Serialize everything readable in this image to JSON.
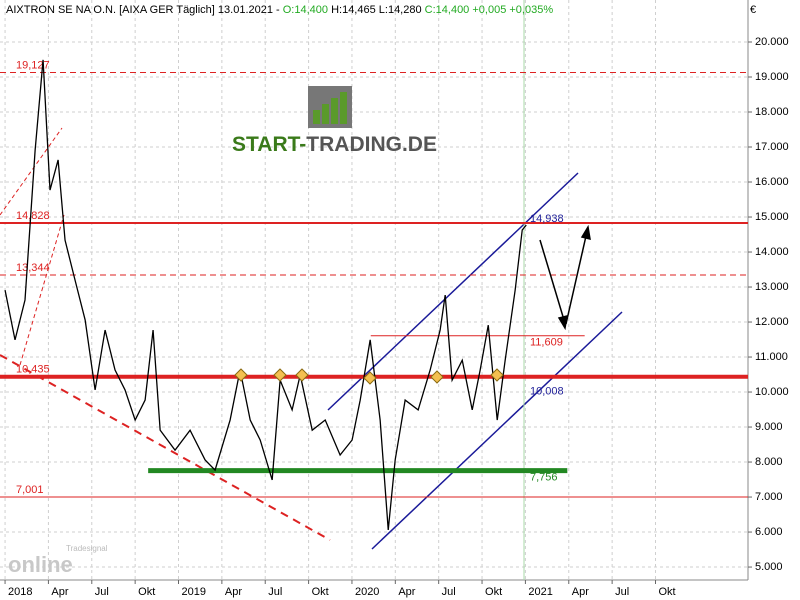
{
  "chart_data": {
    "type": "line",
    "title_parts": [
      {
        "text": "AIXTRON SE NA O.N. [AIXA GER  Täglich] 13.01.2021 - ",
        "color": "#000000"
      },
      {
        "text": "O:14,400",
        "color": "#22aa22"
      },
      {
        "text": " H:14,465 L:14,280 ",
        "color": "#000000"
      },
      {
        "text": "C:14,400 +0,005 +0,035%",
        "color": "#22aa22"
      }
    ],
    "currency": "€",
    "logo": [
      "START-",
      "TRADING.DE"
    ],
    "watermark": [
      "Tradesignal",
      "online"
    ],
    "xlim": [
      -0.35,
      51.4
    ],
    "ylim": [
      4630,
      21200
    ],
    "grid": true,
    "xticks": [
      {
        "value": 0,
        "label": "2018"
      },
      {
        "value": 3,
        "label": "Apr"
      },
      {
        "value": 6,
        "label": "Jul"
      },
      {
        "value": 9,
        "label": "Okt"
      },
      {
        "value": 12,
        "label": "2019"
      },
      {
        "value": 15,
        "label": "Apr"
      },
      {
        "value": 18,
        "label": "Jul"
      },
      {
        "value": 21,
        "label": "Okt"
      },
      {
        "value": 24,
        "label": "2020"
      },
      {
        "value": 27,
        "label": "Apr"
      },
      {
        "value": 30,
        "label": "Jul"
      },
      {
        "value": 33,
        "label": "Okt"
      },
      {
        "value": 36,
        "label": "2021"
      },
      {
        "value": 39,
        "label": "Apr"
      },
      {
        "value": 42,
        "label": "Jul"
      },
      {
        "value": 45,
        "label": "Okt"
      }
    ],
    "yticks": [
      {
        "value": 5000,
        "label": "5.000"
      },
      {
        "value": 6000,
        "label": "6.000"
      },
      {
        "value": 7000,
        "label": "7.000"
      },
      {
        "value": 8000,
        "label": "8.000"
      },
      {
        "value": 9000,
        "label": "9.000"
      },
      {
        "value": 10000,
        "label": "10.000"
      },
      {
        "value": 11000,
        "label": "11.000"
      },
      {
        "value": 12000,
        "label": "12.000"
      },
      {
        "value": 13000,
        "label": "13.000"
      },
      {
        "value": 14000,
        "label": "14.000"
      },
      {
        "value": 15000,
        "label": "15.000"
      },
      {
        "value": 16000,
        "label": "16.000"
      },
      {
        "value": 17000,
        "label": "17.000"
      },
      {
        "value": 18000,
        "label": "18.000"
      },
      {
        "value": 19000,
        "label": "19.000"
      },
      {
        "value": 20000,
        "label": "20.000"
      }
    ],
    "series": [
      {
        "name": "AIXTRON",
        "color": "#000000",
        "x": [
          0,
          0.69,
          1.38,
          2.08,
          2.63,
          3.11,
          3.67,
          4.15,
          4.84,
          5.54,
          6.23,
          6.92,
          7.61,
          8.3,
          9.0,
          9.69,
          10.24,
          10.73,
          11.76,
          12.8,
          13.84,
          14.53,
          15.57,
          16.26,
          16.96,
          17.65,
          18.48,
          19.03,
          19.86,
          20.42,
          21.25,
          22.15,
          23.18,
          24.01,
          24.57,
          25.26,
          25.95,
          26.51,
          26.99,
          27.68,
          28.58,
          29.41,
          30.1,
          30.45,
          30.93,
          31.63,
          32.32,
          32.87,
          33.43,
          34.05,
          34.6,
          35.29,
          35.78,
          36.06
        ],
        "values": [
          12910,
          11490,
          12630,
          16910,
          19490,
          15770,
          16630,
          14340,
          13200,
          12060,
          10060,
          11770,
          10630,
          10060,
          9200,
          9770,
          11770,
          8910,
          8340,
          8910,
          8060,
          7770,
          9200,
          10630,
          9200,
          8630,
          7490,
          10340,
          9490,
          10490,
          8910,
          9200,
          8200,
          8630,
          9770,
          11490,
          9200,
          6060,
          8060,
          9770,
          9490,
          10630,
          11770,
          12770,
          10340,
          10910,
          9490,
          10630,
          11910,
          9200,
          10910,
          12910,
          14630,
          14770
        ]
      }
    ],
    "levels": [
      {
        "value": 19127,
        "label": "19,127",
        "color": "#dd2222",
        "style": "dashed"
      },
      {
        "value": 14828,
        "label": "14,828",
        "color": "#dd2222",
        "style": "solid"
      },
      {
        "value": 13344,
        "label": "13,344",
        "color": "#dd2222",
        "style": "dashed"
      },
      {
        "value": 10435,
        "label": "10,435",
        "color": "#dd2222",
        "style": "thick"
      },
      {
        "value": 7001,
        "label": "7,001",
        "color": "#dd2222",
        "style": "thin"
      }
    ],
    "segments": [
      {
        "value": 11609,
        "label": "11,609",
        "color": "#dd2222",
        "from": 25.3,
        "to": 40.1
      },
      {
        "value": 7756,
        "label": "7,756",
        "color": "#228822",
        "from": 9.9,
        "to": 38.9
      }
    ],
    "channel_labels": [
      {
        "value": 14938,
        "label": "14,938",
        "color": "#222299"
      },
      {
        "value": 10008,
        "label": "10,008",
        "color": "#222299"
      }
    ]
  }
}
